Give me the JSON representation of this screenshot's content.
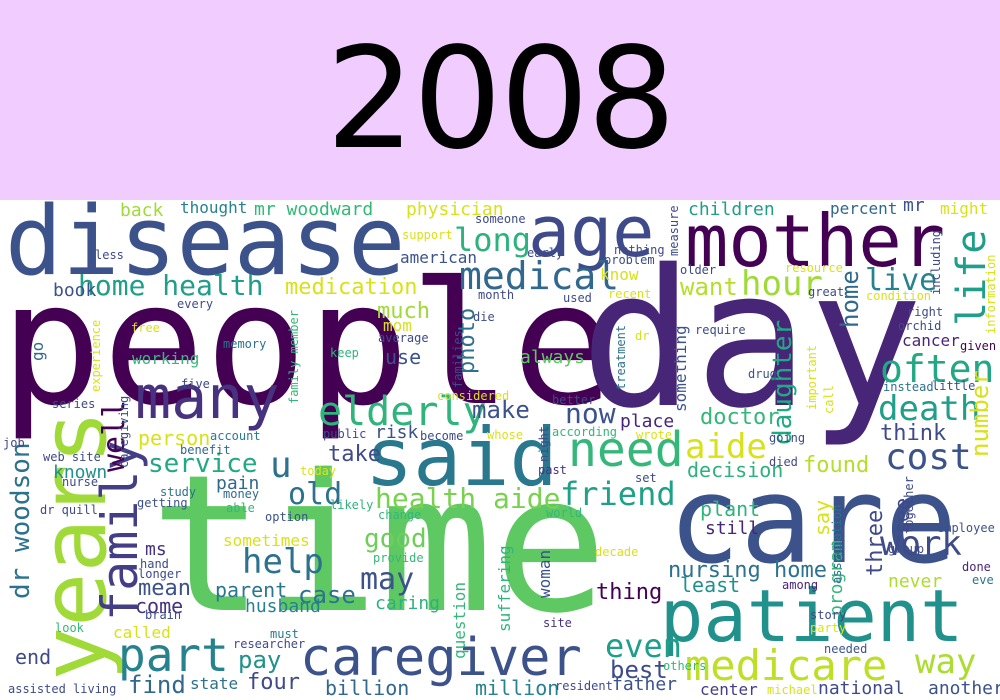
{
  "banner": {
    "title": "2008",
    "background": "#f0ccff"
  },
  "cloud": {
    "words": [
      {
        "text": "people",
        "color": "#440154"
      },
      {
        "text": "day",
        "color": "#482677"
      },
      {
        "text": "time",
        "color": "#5ec962"
      },
      {
        "text": "care",
        "color": "#3b528b"
      },
      {
        "text": "disease",
        "color": "#3b528b"
      },
      {
        "text": "mother",
        "color": "#440154"
      },
      {
        "text": "age",
        "color": "#3e4a89"
      },
      {
        "text": "years",
        "color": "#a0da39"
      },
      {
        "text": "said",
        "color": "#2a788e"
      },
      {
        "text": "many",
        "color": "#46327e"
      },
      {
        "text": "patient",
        "color": "#21918c"
      },
      {
        "text": "caregiver",
        "color": "#3b528b"
      },
      {
        "text": "medicare",
        "color": "#bddf26"
      },
      {
        "text": "part",
        "color": "#26828e"
      },
      {
        "text": "life",
        "color": "#1f9e89"
      },
      {
        "text": "family",
        "color": "#433e85"
      },
      {
        "text": "need",
        "color": "#35b779"
      },
      {
        "text": "often",
        "color": "#22a884"
      },
      {
        "text": "elderly",
        "color": "#2fb47c"
      },
      {
        "text": "medical",
        "color": "#31688e"
      },
      {
        "text": "home health",
        "color": "#1f9e89"
      },
      {
        "text": "cost",
        "color": "#3b528b"
      },
      {
        "text": "help",
        "color": "#2c728e"
      },
      {
        "text": "death",
        "color": "#1f9e89"
      },
      {
        "text": "health aide",
        "color": "#7ad151"
      },
      {
        "text": "friend",
        "color": "#1fa187"
      },
      {
        "text": "long",
        "color": "#2db27d"
      },
      {
        "text": "hour",
        "color": "#a0da39"
      },
      {
        "text": "live",
        "color": "#26828e"
      },
      {
        "text": "work",
        "color": "#3e4a89"
      },
      {
        "text": "aide",
        "color": "#d8e219"
      },
      {
        "text": "dr woodson",
        "color": "#2c728e"
      },
      {
        "text": "now",
        "color": "#3b528b"
      },
      {
        "text": "old",
        "color": "#2c728e"
      },
      {
        "text": "service",
        "color": "#22a884"
      },
      {
        "text": "way",
        "color": "#addc30"
      },
      {
        "text": "even",
        "color": "#1f9e89"
      },
      {
        "text": "may",
        "color": "#3b528b"
      },
      {
        "text": "good",
        "color": "#6ece58"
      },
      {
        "text": "daughter",
        "color": "#22a884"
      },
      {
        "text": "u",
        "color": "#2c728e"
      },
      {
        "text": "home",
        "color": "#31688e"
      },
      {
        "text": "medication",
        "color": "#d8e219"
      },
      {
        "text": "make",
        "color": "#3b528b"
      },
      {
        "text": "want",
        "color": "#b5de2b"
      },
      {
        "text": "doctor",
        "color": "#35b779"
      },
      {
        "text": "found",
        "color": "#b5de2b"
      },
      {
        "text": "think",
        "color": "#3e4a89"
      },
      {
        "text": "pay",
        "color": "#21918c"
      },
      {
        "text": "four",
        "color": "#3e4a89"
      },
      {
        "text": "find",
        "color": "#31688e"
      },
      {
        "text": "end",
        "color": "#3e4a89"
      },
      {
        "text": "nursing home",
        "color": "#2c728e"
      },
      {
        "text": "case",
        "color": "#2c728e"
      },
      {
        "text": "mean",
        "color": "#3b528b"
      },
      {
        "text": "take",
        "color": "#3e4a89"
      },
      {
        "text": "known",
        "color": "#21918c"
      },
      {
        "text": "much",
        "color": "#a0da39"
      },
      {
        "text": "well",
        "color": "#440154"
      },
      {
        "text": "three",
        "color": "#3e4a89"
      },
      {
        "text": "photo",
        "color": "#2c728e"
      },
      {
        "text": "parent",
        "color": "#2a788e"
      },
      {
        "text": "husband",
        "color": "#26828e"
      },
      {
        "text": "come",
        "color": "#46327e"
      },
      {
        "text": "person",
        "color": "#d8e219"
      },
      {
        "text": "number",
        "color": "#d8e219"
      },
      {
        "text": "best",
        "color": "#3e4a89"
      },
      {
        "text": "thing",
        "color": "#440154"
      },
      {
        "text": "billion",
        "color": "#31688e"
      },
      {
        "text": "million",
        "color": "#26828e"
      },
      {
        "text": "father",
        "color": "#3b528b"
      },
      {
        "text": "another",
        "color": "#3b528b"
      },
      {
        "text": "center",
        "color": "#433e85"
      },
      {
        "text": "national",
        "color": "#3e4a89"
      },
      {
        "text": "least",
        "color": "#21918c"
      },
      {
        "text": "plant",
        "color": "#2fb47c"
      },
      {
        "text": "still",
        "color": "#482677"
      },
      {
        "text": "decision",
        "color": "#2db27d"
      },
      {
        "text": "say",
        "color": "#d8e219"
      },
      {
        "text": "never",
        "color": "#addc30"
      },
      {
        "text": "program",
        "color": "#35b779"
      },
      {
        "text": "see",
        "color": "#3e4a89"
      },
      {
        "text": "risk",
        "color": "#3b528b"
      },
      {
        "text": "use",
        "color": "#3b528b"
      },
      {
        "text": "always",
        "color": "#5ec962"
      },
      {
        "text": "place",
        "color": "#482677"
      },
      {
        "text": "pain",
        "color": "#31688e"
      },
      {
        "text": "caring",
        "color": "#2db27d"
      },
      {
        "text": "called",
        "color": "#d8e219"
      },
      {
        "text": "ms",
        "color": "#46327e"
      },
      {
        "text": "state",
        "color": "#2c728e"
      },
      {
        "text": "sometimes",
        "color": "#d8e219"
      },
      {
        "text": "question",
        "color": "#35b779"
      },
      {
        "text": "suffering",
        "color": "#2fb47c"
      },
      {
        "text": "woman",
        "color": "#3b528b"
      },
      {
        "text": "mr woodward",
        "color": "#35b779"
      },
      {
        "text": "physician",
        "color": "#d8e219"
      },
      {
        "text": "children",
        "color": "#1f9e89"
      },
      {
        "text": "back",
        "color": "#a0da39"
      },
      {
        "text": "thought",
        "color": "#26828e"
      },
      {
        "text": "percent",
        "color": "#31688e"
      },
      {
        "text": "mr",
        "color": "#3b528b"
      },
      {
        "text": "might",
        "color": "#d8e219"
      },
      {
        "text": "book",
        "color": "#3b528b"
      },
      {
        "text": "american",
        "color": "#3b528b"
      },
      {
        "text": "know",
        "color": "#d8e219"
      },
      {
        "text": "working",
        "color": "#35b779"
      },
      {
        "text": "mom",
        "color": "#d8e219"
      },
      {
        "text": "go",
        "color": "#31688e"
      },
      {
        "text": "cancer",
        "color": "#482677"
      },
      {
        "text": "something",
        "color": "#3b528b"
      },
      {
        "text": "group",
        "color": "#3e4a89"
      },
      {
        "text": "employee",
        "color": "#3b528b"
      },
      {
        "text": "done",
        "color": "#482677"
      },
      {
        "text": "eve",
        "color": "#2c728e"
      },
      {
        "text": "story",
        "color": "#3e4a89"
      },
      {
        "text": "party",
        "color": "#d8e219"
      },
      {
        "text": "among",
        "color": "#482677"
      },
      {
        "text": "needed",
        "color": "#3b528b"
      },
      {
        "text": "others",
        "color": "#35b779"
      },
      {
        "text": "resident",
        "color": "#3e4a89"
      },
      {
        "text": "site",
        "color": "#46327e"
      },
      {
        "text": "must",
        "color": "#2a788e"
      },
      {
        "text": "researcher",
        "color": "#3e4a89"
      },
      {
        "text": "look",
        "color": "#35b779"
      },
      {
        "text": "assisted living",
        "color": "#3e4a89"
      },
      {
        "text": "brain",
        "color": "#3e4a89"
      },
      {
        "text": "longer",
        "color": "#3e4a89"
      },
      {
        "text": "hand",
        "color": "#3e4a89"
      },
      {
        "text": "provide",
        "color": "#35b779"
      },
      {
        "text": "decade",
        "color": "#d8e219"
      },
      {
        "text": "world",
        "color": "#35b779"
      },
      {
        "text": "set",
        "color": "#3e4a89"
      },
      {
        "text": "past",
        "color": "#46327e"
      },
      {
        "text": "likely",
        "color": "#2fb47c"
      },
      {
        "text": "change",
        "color": "#35b779"
      },
      {
        "text": "option",
        "color": "#3b528b"
      },
      {
        "text": "able",
        "color": "#35b779"
      },
      {
        "text": "money",
        "color": "#31688e"
      },
      {
        "text": "getting",
        "color": "#3b528b"
      },
      {
        "text": "study",
        "color": "#2c728e"
      },
      {
        "text": "dr quill",
        "color": "#3e4a89"
      },
      {
        "text": "web site",
        "color": "#3e4a89"
      },
      {
        "text": "nurse",
        "color": "#3e4a89"
      },
      {
        "text": "job",
        "color": "#3e4a89"
      },
      {
        "text": "series",
        "color": "#3e4a89"
      },
      {
        "text": "caregiving",
        "color": "#3e4a89"
      },
      {
        "text": "five",
        "color": "#3e4a89"
      },
      {
        "text": "memory",
        "color": "#2c728e"
      },
      {
        "text": "free",
        "color": "#d8e219"
      },
      {
        "text": "every",
        "color": "#3e4a89"
      },
      {
        "text": "experience",
        "color": "#d8e219"
      },
      {
        "text": "keep",
        "color": "#2fb47c"
      },
      {
        "text": "family member",
        "color": "#35b779"
      },
      {
        "text": "today",
        "color": "#d8e219"
      },
      {
        "text": "account",
        "color": "#2a788e"
      },
      {
        "text": "benefit",
        "color": "#31688e"
      },
      {
        "text": "public",
        "color": "#3e4a89"
      },
      {
        "text": "become",
        "color": "#3e4a89"
      },
      {
        "text": "whose",
        "color": "#d8e219"
      },
      {
        "text": "according",
        "color": "#35b779"
      },
      {
        "text": "wrote",
        "color": "#d8e219"
      },
      {
        "text": "going",
        "color": "#3e4a89"
      },
      {
        "text": "died",
        "color": "#3e4a89"
      },
      {
        "text": "instead",
        "color": "#2c728e"
      },
      {
        "text": "little",
        "color": "#3e4a89"
      },
      {
        "text": "drug",
        "color": "#3b528b"
      },
      {
        "text": "important",
        "color": "#d8e219"
      },
      {
        "text": "call",
        "color": "#d8e219"
      },
      {
        "text": "right",
        "color": "#3e4a89"
      },
      {
        "text": "orchid",
        "color": "#3e4a89"
      },
      {
        "text": "given",
        "color": "#440154"
      },
      {
        "text": "require",
        "color": "#3e4a89"
      },
      {
        "text": "condition",
        "color": "#d8e219"
      },
      {
        "text": "great",
        "color": "#3e4a89"
      },
      {
        "text": "resource",
        "color": "#d8e219"
      },
      {
        "text": "older",
        "color": "#3e4a89"
      },
      {
        "text": "including",
        "color": "#3e4a89"
      },
      {
        "text": "information",
        "color": "#d8e219"
      },
      {
        "text": "measure",
        "color": "#3e4a89"
      },
      {
        "text": "nothing",
        "color": "#3e4a89"
      },
      {
        "text": "problem",
        "color": "#3e4a89"
      },
      {
        "text": "recent",
        "color": "#d8e219"
      },
      {
        "text": "used",
        "color": "#3e4a89"
      },
      {
        "text": "month",
        "color": "#3e4a89"
      },
      {
        "text": "someone",
        "color": "#3e4a89"
      },
      {
        "text": "early",
        "color": "#3e4a89"
      },
      {
        "text": "support",
        "color": "#d8e219"
      },
      {
        "text": "less",
        "color": "#3e4a89"
      },
      {
        "text": "die",
        "color": "#3e4a89"
      },
      {
        "text": "families",
        "color": "#3e4a89"
      },
      {
        "text": "considered",
        "color": "#d8e219"
      },
      {
        "text": "average",
        "color": "#3e4a89"
      },
      {
        "text": "better",
        "color": "#3e4a89"
      },
      {
        "text": "night",
        "color": "#3e4a89"
      },
      {
        "text": "treatment",
        "color": "#2c728e"
      },
      {
        "text": "dr",
        "color": "#d8e219"
      },
      {
        "text": "association",
        "color": "#2c728e"
      },
      {
        "text": "together",
        "color": "#3e4a89"
      },
      {
        "text": "michael",
        "color": "#d8e219"
      }
    ]
  }
}
